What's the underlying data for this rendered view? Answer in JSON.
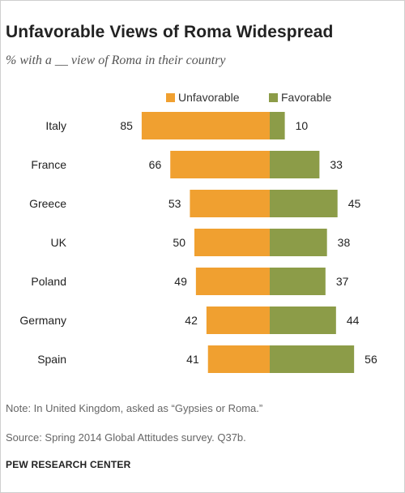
{
  "title": "Unfavorable Views of Roma Widespread",
  "subtitle": "% with a __ view of Roma in their country",
  "note": "Note: In United Kingdom, asked as “Gypsies or Roma.”",
  "source": "Source: Spring 2014 Global Attitudes survey. Q37b.",
  "credit": "PEW RESEARCH CENTER",
  "colors": {
    "unfavorable": "#f0a030",
    "favorable": "#8c9c48"
  },
  "chart_data": {
    "type": "bar",
    "orientation": "horizontal-diverging",
    "categories": [
      "Italy",
      "France",
      "Greece",
      "UK",
      "Poland",
      "Germany",
      "Spain"
    ],
    "series": [
      {
        "name": "Unfavorable",
        "values": [
          85,
          66,
          53,
          50,
          49,
          42,
          41
        ]
      },
      {
        "name": "Favorable",
        "values": [
          10,
          33,
          45,
          38,
          37,
          44,
          56
        ]
      }
    ],
    "legend_position": "top",
    "grid": false
  }
}
